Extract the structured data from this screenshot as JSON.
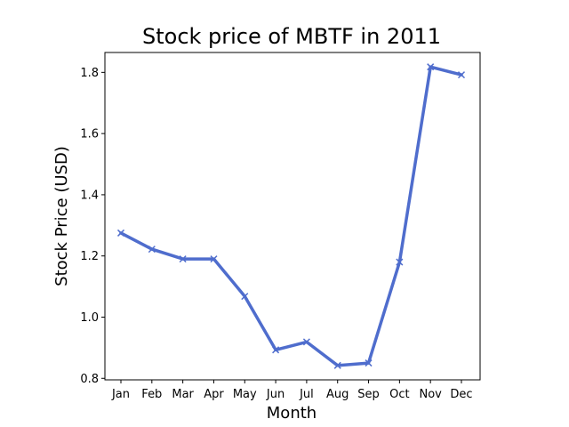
{
  "chart_data": {
    "type": "line",
    "title": "Stock price of MBTF in 2011",
    "xlabel": "Month",
    "ylabel": "Stock Price (USD)",
    "categories": [
      "Jan",
      "Feb",
      "Mar",
      "Apr",
      "May",
      "Jun",
      "Jul",
      "Aug",
      "Sep",
      "Oct",
      "Nov",
      "Dec"
    ],
    "series": [
      {
        "values": [
          1.275,
          1.222,
          1.19,
          1.19,
          1.068,
          0.893,
          0.919,
          0.842,
          0.85,
          1.18,
          1.818,
          1.792
        ],
        "color": "#4f6dcd",
        "marker": "x"
      }
    ],
    "yticks": [
      0.8,
      1.0,
      1.2,
      1.4,
      1.6,
      1.8
    ],
    "ytick_labels": [
      "0.8",
      "1.0",
      "1.2",
      "1.4",
      "1.6",
      "1.8"
    ],
    "ylim": [
      0.795,
      1.865
    ],
    "grid": false,
    "legend": "none"
  }
}
